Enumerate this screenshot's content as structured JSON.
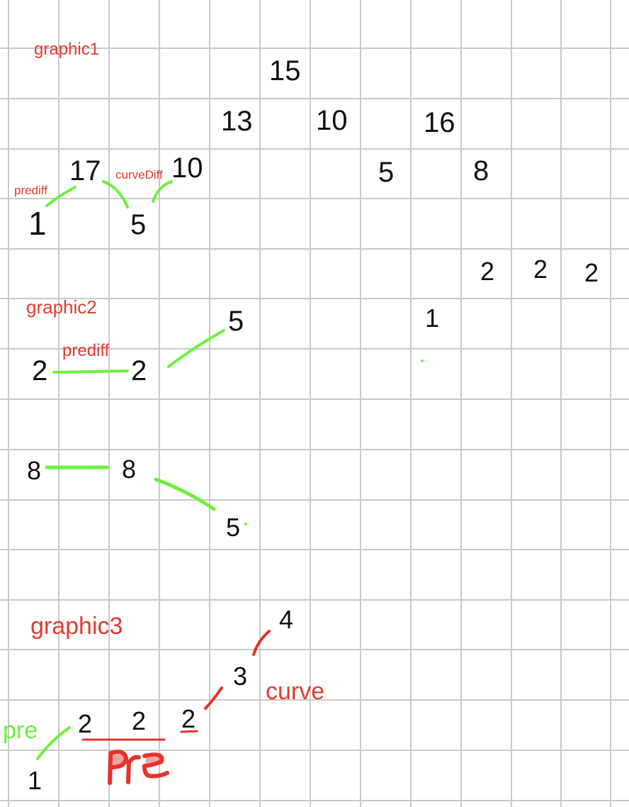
{
  "colors": {
    "grid": "#c9c9c9",
    "number": "#111111",
    "label_red": "#e03c31",
    "marker_green": "#6cf23c",
    "ink_red": "#e5322a"
  },
  "graphic1": {
    "title": "graphic1",
    "numbers": [
      "15",
      "13",
      "10",
      "16",
      "17",
      "10",
      "5",
      "8",
      "1",
      "5",
      "2",
      "2",
      "2"
    ],
    "labels": {
      "prediff": "prediff",
      "curveDiff": "curveDiff"
    }
  },
  "graphic2": {
    "title": "graphic2",
    "numbers": [
      "5",
      "1",
      "2",
      "2",
      "8",
      "8",
      "5"
    ],
    "labels": {
      "prediff": "prediff"
    }
  },
  "graphic3": {
    "title": "graphic3",
    "numbers": [
      "4",
      "3",
      "2",
      "2",
      "2",
      "1"
    ],
    "labels": {
      "curve": "curve",
      "pre_green": "pre",
      "pre_red": "pre"
    }
  }
}
